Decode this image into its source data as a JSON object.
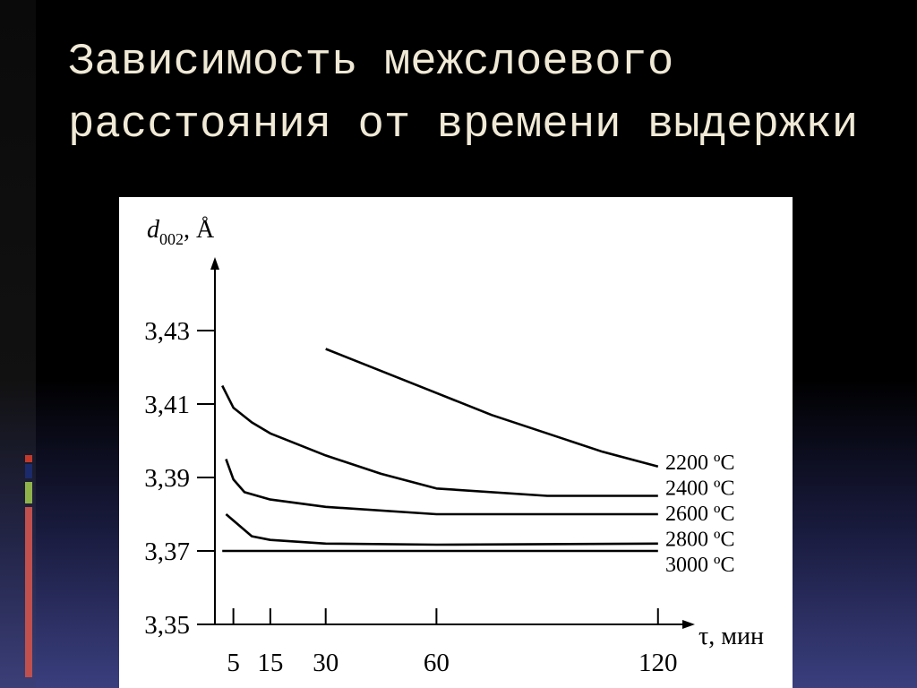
{
  "title": "Зависимость межслоевого расстояния от времени выдержки",
  "chart_data": {
    "type": "line",
    "y_label": {
      "symbol": "d",
      "subscript": "002",
      "unit": ", Å"
    },
    "x_label": "τ, мин",
    "xlim": [
      0,
      130
    ],
    "xticks": [
      5,
      15,
      30,
      60,
      120
    ],
    "ylim": [
      3.35,
      3.45
    ],
    "yticks": [
      {
        "value": 3.35,
        "label": "3,35"
      },
      {
        "value": 3.37,
        "label": "3,37"
      },
      {
        "value": 3.39,
        "label": "3,39"
      },
      {
        "value": 3.41,
        "label": "3,41"
      },
      {
        "value": 3.43,
        "label": "3,43"
      }
    ],
    "series": [
      {
        "name": "2200 ºC",
        "color": "#000000",
        "x": [
          30,
          45,
          60,
          75,
          90,
          105,
          120
        ],
        "values": [
          3.425,
          3.419,
          3.413,
          3.407,
          3.402,
          3.397,
          3.393
        ]
      },
      {
        "name": "2400 ºC",
        "color": "#000000",
        "x": [
          2,
          5,
          10,
          15,
          30,
          45,
          60,
          90,
          120
        ],
        "values": [
          3.415,
          3.409,
          3.405,
          3.402,
          3.396,
          3.391,
          3.387,
          3.385,
          3.385
        ]
      },
      {
        "name": "2600 ºC",
        "color": "#000000",
        "x": [
          3,
          5,
          8,
          15,
          30,
          60,
          120
        ],
        "values": [
          3.395,
          3.3895,
          3.386,
          3.384,
          3.382,
          3.38,
          3.38
        ]
      },
      {
        "name": "2800 ºC",
        "color": "#000000",
        "x": [
          3,
          10,
          15,
          30,
          60,
          120
        ],
        "values": [
          3.38,
          3.374,
          3.373,
          3.372,
          3.3717,
          3.372
        ]
      },
      {
        "name": "3000 ºC",
        "color": "#000000",
        "x": [
          2,
          120
        ],
        "values": [
          3.37,
          3.37
        ]
      }
    ]
  }
}
